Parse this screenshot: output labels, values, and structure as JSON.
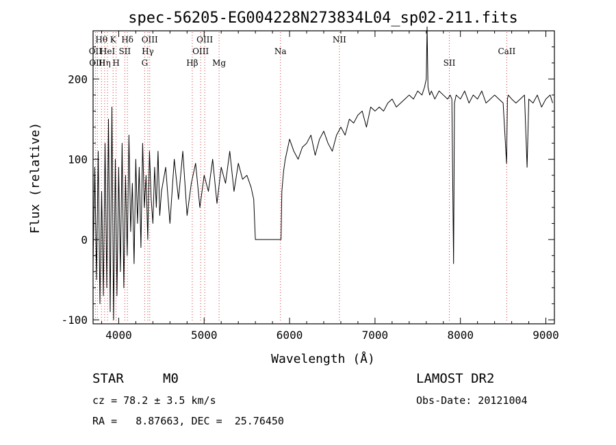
{
  "chart_data": {
    "type": "line",
    "title": "spec-56205-EG004228N273834L04_sp02-211.fits",
    "xlabel": "Wavelength (Å)",
    "ylabel": "Flux (relative)",
    "xlim": [
      3700,
      9100
    ],
    "ylim": [
      -105,
      260
    ],
    "x_ticks": [
      4000,
      5000,
      6000,
      7000,
      8000,
      9000
    ],
    "y_ticks": [
      -100,
      0,
      100,
      200
    ],
    "grid": false,
    "line_color": "#000000",
    "marker_color": "#cc3333",
    "series": [
      {
        "x": [
          3700,
          3720,
          3740,
          3760,
          3780,
          3800,
          3820,
          3840,
          3860,
          3880,
          3900,
          3920,
          3940,
          3960,
          3980,
          4000,
          4020,
          4040,
          4060,
          4080,
          4100,
          4120,
          4140,
          4160,
          4180,
          4200,
          4220,
          4240,
          4260,
          4280,
          4300,
          4320,
          4340,
          4360,
          4380,
          4400,
          4420,
          4440,
          4460,
          4480,
          4500,
          4550,
          4600,
          4650,
          4700,
          4750,
          4800,
          4850,
          4900,
          4950,
          5000,
          5050,
          5100,
          5150,
          5200,
          5250,
          5300,
          5350,
          5400,
          5450,
          5500,
          5550,
          5580,
          5600,
          5900,
          5910,
          5930,
          5950,
          6000,
          6050,
          6100,
          6150,
          6200,
          6250,
          6300,
          6350,
          6400,
          6450,
          6500,
          6550,
          6600,
          6650,
          6700,
          6750,
          6800,
          6850,
          6900,
          6950,
          7000,
          7050,
          7100,
          7150,
          7200,
          7250,
          7300,
          7350,
          7400,
          7450,
          7500,
          7550,
          7580,
          7600,
          7610,
          7620,
          7640,
          7660,
          7700,
          7750,
          7800,
          7850,
          7880,
          7900,
          7920,
          7930,
          7950,
          8000,
          8050,
          8100,
          8150,
          8200,
          8250,
          8300,
          8350,
          8400,
          8450,
          8500,
          8540,
          8550,
          8560,
          8600,
          8650,
          8700,
          8750,
          8780,
          8800,
          8850,
          8900,
          8950,
          9000,
          9050,
          9080
        ],
        "y": [
          -30,
          90,
          -50,
          110,
          -80,
          60,
          -70,
          120,
          -60,
          150,
          -90,
          165,
          -100,
          100,
          -70,
          90,
          -40,
          120,
          -60,
          80,
          -20,
          130,
          10,
          70,
          -30,
          100,
          20,
          90,
          -10,
          120,
          40,
          80,
          0,
          110,
          50,
          20,
          90,
          40,
          110,
          30,
          60,
          90,
          20,
          100,
          50,
          110,
          30,
          70,
          95,
          40,
          80,
          60,
          100,
          45,
          90,
          70,
          110,
          60,
          95,
          75,
          80,
          65,
          50,
          0,
          0,
          60,
          85,
          100,
          125,
          110,
          100,
          115,
          120,
          130,
          105,
          125,
          135,
          120,
          110,
          130,
          140,
          130,
          150,
          145,
          155,
          160,
          140,
          165,
          160,
          165,
          160,
          170,
          175,
          165,
          170,
          175,
          180,
          175,
          185,
          180,
          190,
          200,
          265,
          190,
          180,
          185,
          175,
          185,
          180,
          175,
          180,
          175,
          -30,
          170,
          180,
          175,
          185,
          170,
          180,
          175,
          185,
          170,
          175,
          180,
          175,
          170,
          95,
          175,
          180,
          175,
          170,
          175,
          180,
          90,
          175,
          170,
          180,
          165,
          175,
          180,
          170
        ]
      }
    ],
    "line_markers": [
      {
        "x": 3727,
        "label": "OII",
        "row": 2
      },
      {
        "x": 3750,
        "label": "OIII",
        "row": 3
      },
      {
        "x": 3798,
        "label": "Hθ",
        "row": 1
      },
      {
        "x": 3835,
        "label": "Hη",
        "row": 3
      },
      {
        "x": 3869,
        "label": "HeI",
        "row": 2
      },
      {
        "x": 3934,
        "label": "K",
        "row": 1
      },
      {
        "x": 3969,
        "label": "H",
        "row": 3
      },
      {
        "x": 4071,
        "label": "SII",
        "row": 2
      },
      {
        "x": 4102,
        "label": "Hδ",
        "row": 1
      },
      {
        "x": 4304,
        "label": "G",
        "row": 3
      },
      {
        "x": 4341,
        "label": "Hγ",
        "row": 2
      },
      {
        "x": 4363,
        "label": "OIII",
        "row": 1
      },
      {
        "x": 4861,
        "label": "Hβ",
        "row": 3
      },
      {
        "x": 4959,
        "label": "OIII",
        "row": 2
      },
      {
        "x": 5007,
        "label": "OIII",
        "row": 1
      },
      {
        "x": 5175,
        "label": "Mg",
        "row": 3
      },
      {
        "x": 5893,
        "label": "Na",
        "row": 2
      },
      {
        "x": 6583,
        "label": "NII",
        "row": 1
      },
      {
        "x": 7870,
        "label": "SII",
        "row": 3
      },
      {
        "x": 8542,
        "label": "CaII",
        "row": 2
      }
    ]
  },
  "info": {
    "class_label": "STAR",
    "subclass": "M0",
    "survey": "LAMOST DR2",
    "redshift": "cz = 78.2 ± 3.5 km/s",
    "obs_date": "Obs-Date: 20121004",
    "coords": "RA =   8.87663, DEC =  25.76450"
  }
}
